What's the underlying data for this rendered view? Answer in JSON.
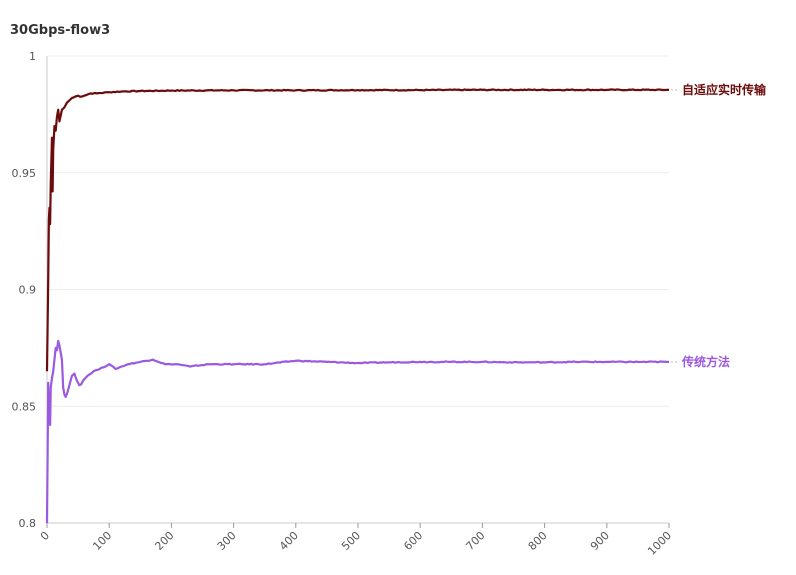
{
  "chart_data": {
    "type": "line",
    "title": "30Gbps-flow3",
    "xlabel": "",
    "ylabel": "",
    "xlim": [
      0,
      1000
    ],
    "ylim": [
      0.8,
      1
    ],
    "x_ticks": [
      "0",
      "100",
      "200",
      "300",
      "400",
      "500",
      "600",
      "700",
      "800",
      "900",
      "1000"
    ],
    "y_ticks": [
      "0.8",
      "0.85",
      "0.9",
      "0.95",
      "1"
    ],
    "grid": "horizontal",
    "legend": "inline-right",
    "series": [
      {
        "name": "自适应实时传输",
        "color": "#6b0b0b",
        "points": [
          [
            0,
            0.865
          ],
          [
            2,
            0.905
          ],
          [
            3,
            0.93
          ],
          [
            4,
            0.935
          ],
          [
            5,
            0.928
          ],
          [
            6,
            0.945
          ],
          [
            8,
            0.965
          ],
          [
            9,
            0.942
          ],
          [
            10,
            0.96
          ],
          [
            12,
            0.97
          ],
          [
            14,
            0.968
          ],
          [
            16,
            0.974
          ],
          [
            18,
            0.977
          ],
          [
            20,
            0.972
          ],
          [
            24,
            0.977
          ],
          [
            28,
            0.978
          ],
          [
            32,
            0.98
          ],
          [
            36,
            0.981
          ],
          [
            40,
            0.982
          ],
          [
            50,
            0.983
          ],
          [
            60,
            0.983
          ],
          [
            70,
            0.984
          ],
          [
            80,
            0.984
          ],
          [
            100,
            0.9845
          ],
          [
            120,
            0.9848
          ],
          [
            150,
            0.985
          ],
          [
            200,
            0.9852
          ],
          [
            300,
            0.9853
          ],
          [
            400,
            0.9853
          ],
          [
            500,
            0.9854
          ],
          [
            600,
            0.9854
          ],
          [
            700,
            0.9855
          ],
          [
            800,
            0.9855
          ],
          [
            900,
            0.9855
          ],
          [
            1000,
            0.9855
          ]
        ]
      },
      {
        "name": "传统方法",
        "color": "#9b59e0",
        "points": [
          [
            0,
            0.8
          ],
          [
            1,
            0.83
          ],
          [
            2,
            0.86
          ],
          [
            3,
            0.845
          ],
          [
            4,
            0.853
          ],
          [
            5,
            0.842
          ],
          [
            6,
            0.858
          ],
          [
            8,
            0.862
          ],
          [
            10,
            0.865
          ],
          [
            12,
            0.87
          ],
          [
            14,
            0.875
          ],
          [
            16,
            0.874
          ],
          [
            18,
            0.878
          ],
          [
            20,
            0.876
          ],
          [
            24,
            0.87
          ],
          [
            26,
            0.858
          ],
          [
            28,
            0.855
          ],
          [
            30,
            0.854
          ],
          [
            33,
            0.856
          ],
          [
            36,
            0.859
          ],
          [
            40,
            0.863
          ],
          [
            44,
            0.864
          ],
          [
            48,
            0.861
          ],
          [
            52,
            0.859
          ],
          [
            58,
            0.861
          ],
          [
            65,
            0.863
          ],
          [
            75,
            0.865
          ],
          [
            85,
            0.866
          ],
          [
            100,
            0.868
          ],
          [
            110,
            0.866
          ],
          [
            130,
            0.868
          ],
          [
            150,
            0.869
          ],
          [
            170,
            0.87
          ],
          [
            190,
            0.868
          ],
          [
            210,
            0.868
          ],
          [
            230,
            0.867
          ],
          [
            260,
            0.868
          ],
          [
            300,
            0.868
          ],
          [
            350,
            0.868
          ],
          [
            400,
            0.8695
          ],
          [
            450,
            0.869
          ],
          [
            500,
            0.8685
          ],
          [
            550,
            0.8688
          ],
          [
            600,
            0.869
          ],
          [
            650,
            0.869
          ],
          [
            700,
            0.869
          ],
          [
            750,
            0.8688
          ],
          [
            800,
            0.8688
          ],
          [
            850,
            0.869
          ],
          [
            900,
            0.869
          ],
          [
            950,
            0.869
          ],
          [
            1000,
            0.869
          ]
        ]
      }
    ]
  }
}
